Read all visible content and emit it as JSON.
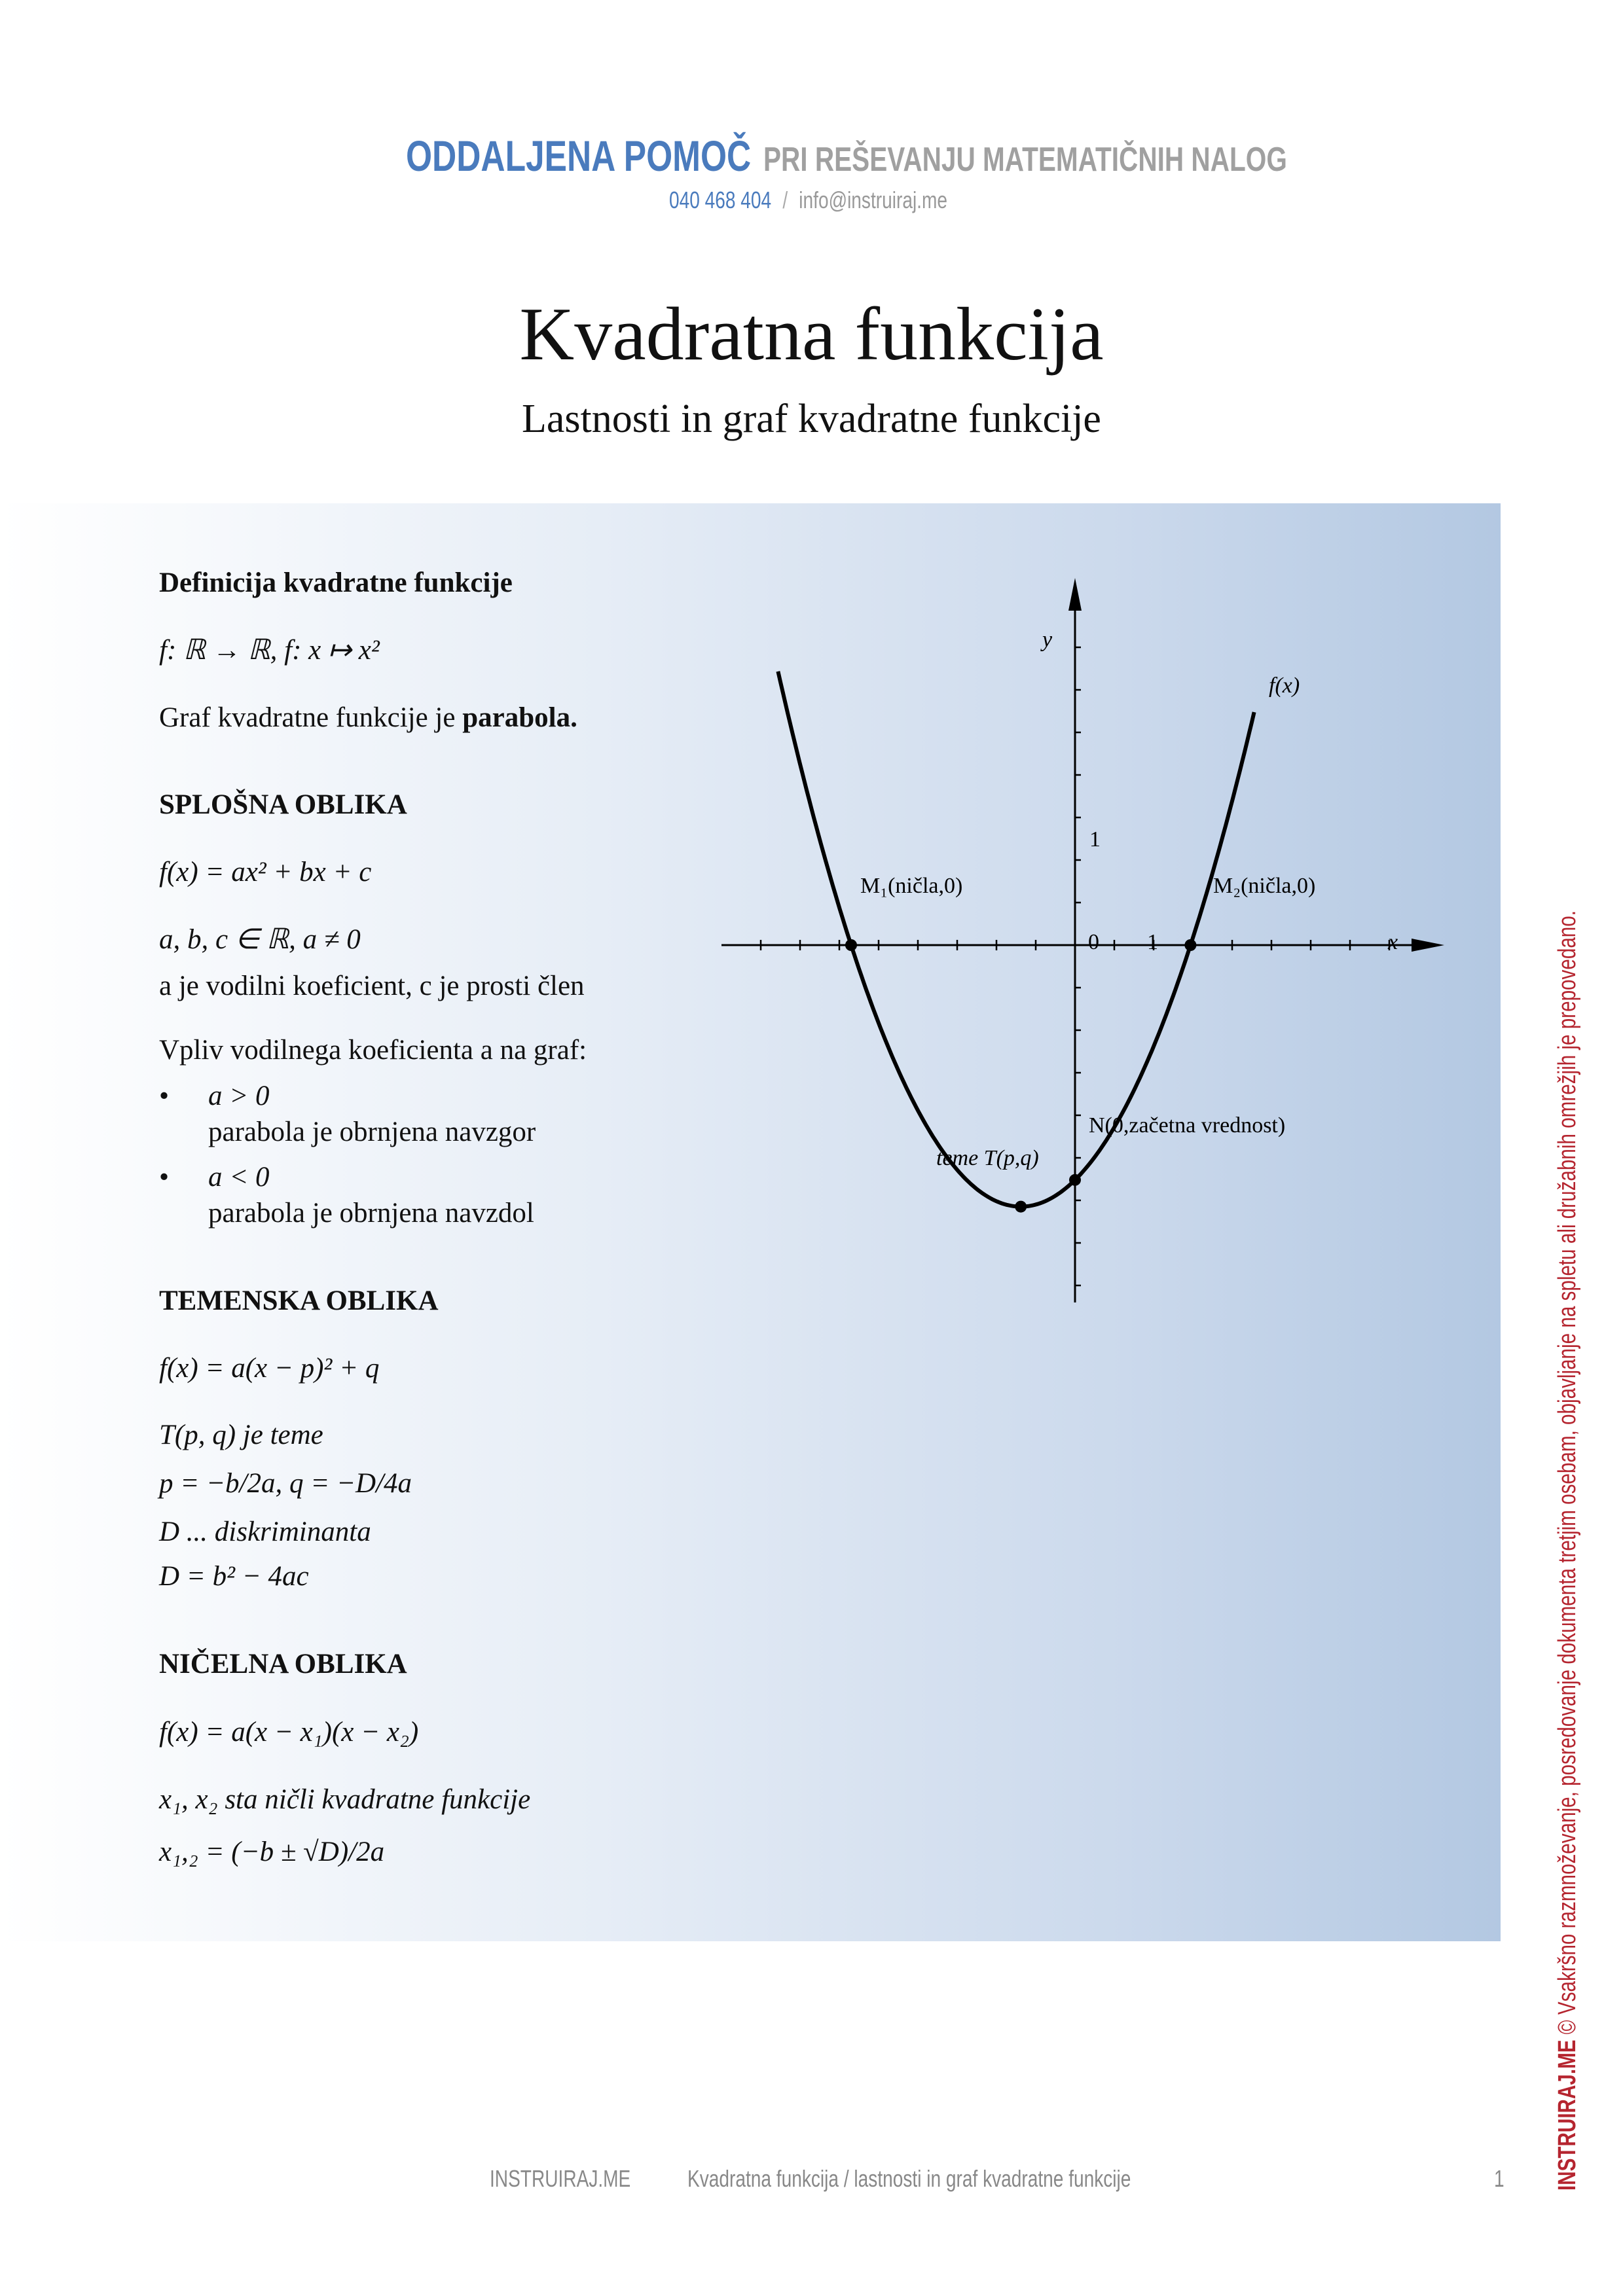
{
  "header": {
    "brand_bold": "ODDALJENA POMOČ",
    "brand_rest": "PRI REŠEVANJU MATEMATIČNIH NALOG",
    "phone": "040 468 404",
    "separator": "/",
    "email": "info@instruiraj.me",
    "colors": {
      "blue": "#4a7bbd",
      "gray": "#a0a0a0"
    }
  },
  "title": "Kvadratna funkcija",
  "subtitle": "Lastnosti in graf kvadratne funkcije",
  "content": {
    "definition_heading": "Definicija kvadratne funkcije",
    "definition_formula": "f: ℝ → ℝ, f: x ↦ x²",
    "graph_sentence": "Graf kvadratne funkcije je",
    "graph_sentence_bold": "parabola.",
    "general_heading": "SPLOŠNA OBLIKA",
    "general_formula": "f(x) = ax² + bx + c",
    "general_conditions": "a, b, c ∈ ℝ, a ≠ 0",
    "general_note": "a je vodilni koeficient, c je prosti člen",
    "influence_intro": "Vpliv vodilnega koeficienta a na graf:",
    "bullets": [
      {
        "condition": "a > 0",
        "text": "parabola je obrnjena navzgor"
      },
      {
        "condition": "a < 0",
        "text": "parabola je obrnjena navzdol"
      }
    ],
    "vertex_heading": "TEMENSKA OBLIKA",
    "vertex_formula": "f(x) = a(x − p)² + q",
    "vertex_def": "T(p, q) je teme",
    "vertex_pq": "p = −b/2a, q = −D/4a",
    "discriminant_label": "D ... diskriminanta",
    "discriminant_formula": "D = b² − 4ac",
    "zero_heading": "NIČELNA OBLIKA",
    "zero_formula": "f(x) = a(x − x₁)(x − x₂)",
    "zero_note": "x₁, x₂ sta ničli kvadratne funkcije",
    "zero_roots": "x₁,₂ = (−b ± √D)/2a"
  },
  "graph": {
    "axis_x_label": "x",
    "axis_y_label": "y",
    "curve_label": "f(x)",
    "tick_label_origin": "0",
    "tick_label_x1": "1",
    "tick_label_y1": "1",
    "point_m1": "M₁(ničla,0)",
    "point_m2": "M₂(ničla,0)",
    "point_n": "N(0,začetna vrednost)",
    "point_t": "teme T(p,q)",
    "roots": [
      -2.85,
      1.47
    ],
    "leading_coefficient": 0.61,
    "x_range": [
      -3.78,
      2.28
    ],
    "x_axis_range": [
      -4.5,
      4.7
    ],
    "y_axis_range": [
      -4.2,
      4.2
    ],
    "tick_step": 0.5
  },
  "watermark": {
    "brand": "INSTRUIRAJ.ME",
    "text": "© Vsakršno razmnoževanje, posredovanje dokumenta tretjim osebam, objavljanje na spletu ali družabnih omrežjih je prepovedano.",
    "color": "#b5252f"
  },
  "footer": {
    "brand": "INSTRUIRAJ.ME",
    "doc": "Kvadratna funkcija / lastnosti in graf kvadratne funkcije",
    "page": "1"
  }
}
